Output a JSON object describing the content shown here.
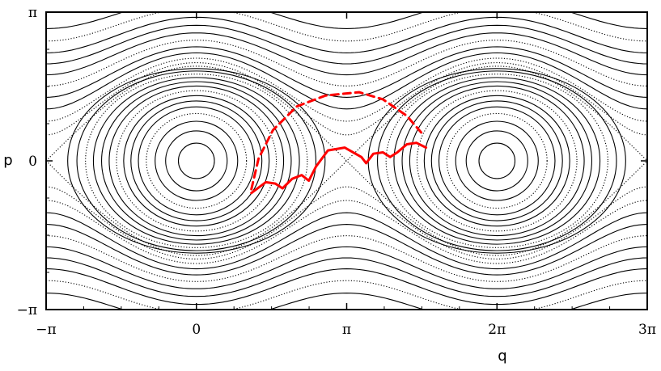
{
  "chart_data": {
    "type": "scatter",
    "title": "",
    "xlabel": "q",
    "ylabel": "p",
    "xlim": [
      -3.14159,
      9.42478
    ],
    "ylim": [
      -3.14159,
      3.14159
    ],
    "grid": false,
    "x_ticks": [
      {
        "value": -3.14159,
        "label": "−π"
      },
      {
        "value": 0,
        "label": "0"
      },
      {
        "value": 3.14159,
        "label": "π"
      },
      {
        "value": 6.28319,
        "label": "2π"
      },
      {
        "value": 9.42478,
        "label": "3π"
      }
    ],
    "y_ticks": [
      {
        "value": 3.14159,
        "label": "π"
      },
      {
        "value": 0,
        "label": "0"
      },
      {
        "value": -3.14159,
        "label": "−π"
      }
    ],
    "background": "Poincaré section: nested elliptic orbits around (0,0) and (2π,0), chaotic separatrix layers",
    "series": [
      {
        "style": "solid",
        "color": "#ff0000",
        "points": [
          [
            1.15,
            -0.68
          ],
          [
            1.45,
            -0.45
          ],
          [
            1.65,
            -0.48
          ],
          [
            1.8,
            -0.58
          ],
          [
            2.0,
            -0.38
          ],
          [
            2.2,
            -0.3
          ],
          [
            2.35,
            -0.42
          ],
          [
            2.5,
            -0.12
          ],
          [
            2.75,
            0.22
          ],
          [
            3.1,
            0.28
          ],
          [
            3.45,
            0.08
          ],
          [
            3.55,
            -0.05
          ],
          [
            3.7,
            0.15
          ],
          [
            3.9,
            0.18
          ],
          [
            4.05,
            0.08
          ],
          [
            4.2,
            0.18
          ],
          [
            4.4,
            0.35
          ],
          [
            4.6,
            0.38
          ],
          [
            4.8,
            0.28
          ]
        ]
      },
      {
        "style": "dashed",
        "color": "#ff0000",
        "points": [
          [
            1.15,
            -0.6
          ],
          [
            1.3,
            0.05
          ],
          [
            1.6,
            0.65
          ],
          [
            2.1,
            1.15
          ],
          [
            2.7,
            1.38
          ],
          [
            3.4,
            1.45
          ],
          [
            3.9,
            1.3
          ],
          [
            4.4,
            0.95
          ],
          [
            4.7,
            0.6
          ]
        ]
      }
    ]
  }
}
